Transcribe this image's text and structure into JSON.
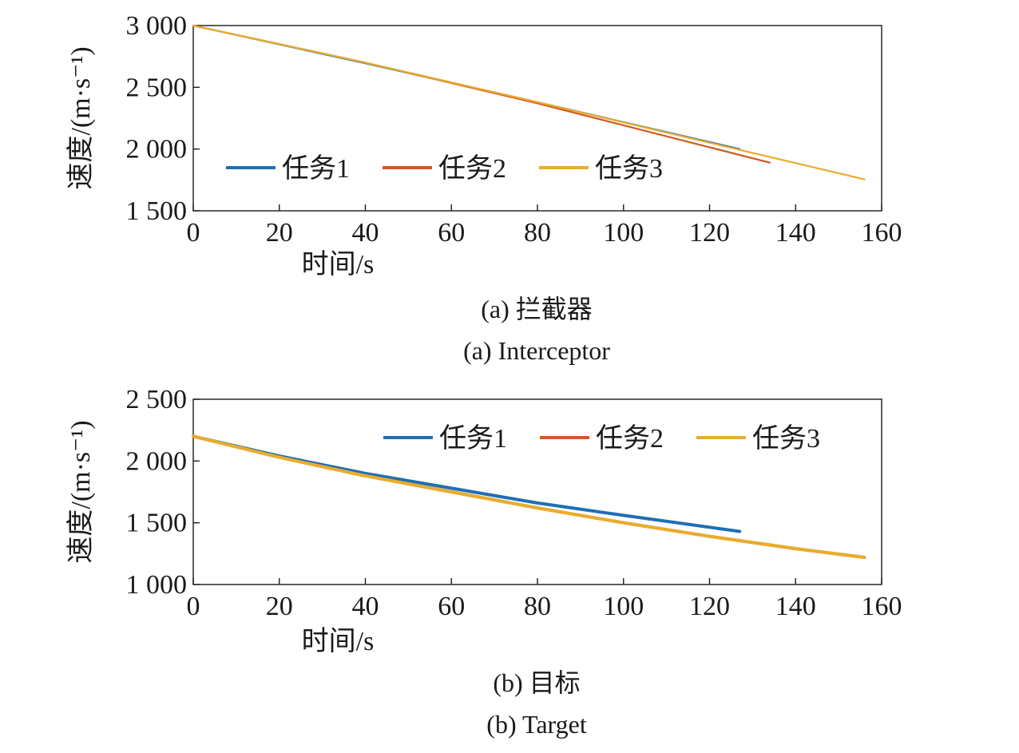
{
  "colors": {
    "series1": "#1f6fb4",
    "series2": "#d15a22",
    "series3": "#e8ad2c",
    "axis": "#1a1a1a"
  },
  "chart_data": [
    {
      "id": "a",
      "type": "line",
      "caption_cn": "(a) 拦截器",
      "caption_en": "(a) Interceptor",
      "xlabel": "时间/s",
      "ylabel": "速度/(m·s⁻¹)",
      "xlim": [
        0,
        160
      ],
      "ylim": [
        1500,
        3000
      ],
      "xticks": [
        0,
        20,
        40,
        60,
        80,
        100,
        120,
        140,
        160
      ],
      "xtick_labels": [
        "0",
        "20",
        "40",
        "60",
        "80",
        "100",
        "120",
        "140",
        "160"
      ],
      "yticks": [
        1500,
        2000,
        2500,
        3000
      ],
      "ytick_labels": [
        "1 500",
        "2 000",
        "2 500",
        "3 000"
      ],
      "legend": {
        "placement": "lower-left",
        "entries": [
          "任务1",
          "任务2",
          "任务3"
        ]
      },
      "series": [
        {
          "name": "任务1",
          "color_key": "series1",
          "x": [
            0,
            40,
            80,
            127
          ],
          "y": [
            3000,
            2695,
            2380,
            2000
          ]
        },
        {
          "name": "任务2",
          "color_key": "series2",
          "x": [
            0,
            40,
            80,
            134
          ],
          "y": [
            3000,
            2700,
            2370,
            1890
          ]
        },
        {
          "name": "任务3",
          "color_key": "series3",
          "x": [
            0,
            40,
            80,
            156
          ],
          "y": [
            3000,
            2700,
            2380,
            1755
          ]
        }
      ]
    },
    {
      "id": "b",
      "type": "line",
      "caption_cn": "(b) 目标",
      "caption_en": "(b) Target",
      "xlabel": "时间/s",
      "ylabel": "速度/(m·s⁻¹)",
      "xlim": [
        0,
        160
      ],
      "ylim": [
        1000,
        2500
      ],
      "xticks": [
        0,
        20,
        40,
        60,
        80,
        100,
        120,
        140,
        160
      ],
      "xtick_labels": [
        "0",
        "20",
        "40",
        "60",
        "80",
        "100",
        "120",
        "140",
        "160"
      ],
      "yticks": [
        1000,
        1500,
        2000,
        2500
      ],
      "ytick_labels": [
        "1 000",
        "1 500",
        "2 000",
        "2 500"
      ],
      "legend": {
        "placement": "top-right",
        "entries": [
          "任务1",
          "任务2",
          "任务3"
        ]
      },
      "series": [
        {
          "name": "任务1",
          "color_key": "series1",
          "x": [
            0,
            20,
            40,
            60,
            80,
            100,
            127
          ],
          "y": [
            2200,
            2040,
            1900,
            1780,
            1660,
            1560,
            1430
          ]
        },
        {
          "name": "任务2",
          "color_key": "series2",
          "x": [
            0,
            20,
            40,
            60,
            80,
            100,
            120,
            140,
            156
          ],
          "y": [
            2200,
            2030,
            1880,
            1750,
            1620,
            1500,
            1390,
            1290,
            1220
          ]
        },
        {
          "name": "任务3",
          "color_key": "series3",
          "x": [
            0,
            20,
            40,
            60,
            80,
            100,
            120,
            140,
            156
          ],
          "y": [
            2200,
            2030,
            1880,
            1750,
            1620,
            1500,
            1390,
            1290,
            1220
          ]
        }
      ]
    }
  ]
}
